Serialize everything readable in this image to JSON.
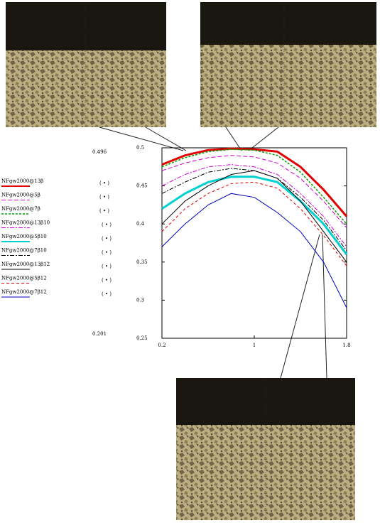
{
  "chart_data": {
    "type": "line",
    "x": [
      0.2,
      0.4,
      0.6,
      0.8,
      1.0,
      1.2,
      1.4,
      1.6,
      1.8
    ],
    "xlim": [
      0.2,
      1.8
    ],
    "xticks": [
      0.2,
      1,
      1.8
    ],
    "ylim": [
      0.25,
      0.5
    ],
    "yticks": [
      0.25,
      0.3,
      0.35,
      0.4,
      0.45,
      0.5
    ],
    "annotations": [
      "0.496",
      "0.201"
    ],
    "legend_markers": [
      "( • )",
      "( • )",
      "( • )",
      "( • )",
      "( • )",
      "( • )",
      "( • )",
      "( • )",
      "( • )"
    ],
    "series": [
      {
        "name": "NFgw2000@13β",
        "color": "#e00000",
        "width": 3,
        "dash": "",
        "values": [
          0.478,
          0.49,
          0.497,
          0.499,
          0.498,
          0.495,
          0.475,
          0.445,
          0.41
        ]
      },
      {
        "name": "NFgw2000@5β",
        "color": "#d000d0",
        "width": 1,
        "dash": "6 3",
        "values": [
          0.47,
          0.48,
          0.487,
          0.49,
          0.488,
          0.48,
          0.46,
          0.43,
          0.395
        ]
      },
      {
        "name": "NFgw2000@7β",
        "color": "#00a000",
        "width": 1.5,
        "dash": "3 2",
        "values": [
          0.475,
          0.487,
          0.495,
          0.498,
          0.497,
          0.49,
          0.468,
          0.435,
          0.4
        ]
      },
      {
        "name": "NFgw2000@13β10",
        "color": "#d000d0",
        "width": 1,
        "dash": "6 2 2 2",
        "values": [
          0.45,
          0.465,
          0.475,
          0.478,
          0.475,
          0.465,
          0.44,
          0.41,
          0.37
        ]
      },
      {
        "name": "NFgw2000@5β10",
        "color": "#00d0d0",
        "width": 3,
        "dash": "",
        "values": [
          0.42,
          0.44,
          0.455,
          0.462,
          0.462,
          0.455,
          0.43,
          0.4,
          0.36
        ]
      },
      {
        "name": "NFgw2000@7β10",
        "color": "#000000",
        "width": 1,
        "dash": "6 2 2 2",
        "values": [
          0.44,
          0.455,
          0.468,
          0.473,
          0.47,
          0.46,
          0.435,
          0.405,
          0.365
        ]
      },
      {
        "name": "NFgw2000@13β12",
        "color": "#000000",
        "width": 1,
        "dash": "",
        "values": [
          0.4,
          0.43,
          0.45,
          0.465,
          0.47,
          0.46,
          0.43,
          0.39,
          0.35
        ]
      },
      {
        "name": "NFgw2000@5β12",
        "color": "#e00000",
        "width": 1,
        "dash": "4 3",
        "values": [
          0.39,
          0.42,
          0.44,
          0.453,
          0.455,
          0.447,
          0.42,
          0.385,
          0.345
        ]
      },
      {
        "name": "NFgw2000@7β12",
        "color": "#0000c0",
        "width": 1,
        "dash": "",
        "values": [
          0.37,
          0.4,
          0.425,
          0.44,
          0.435,
          0.415,
          0.39,
          0.35,
          0.29
        ]
      }
    ]
  }
}
